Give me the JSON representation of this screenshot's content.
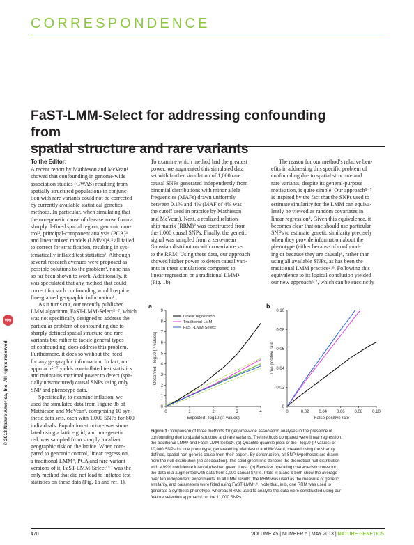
{
  "section_header": "CORRESPONDENCE",
  "title_lines": [
    "FaST-LMM-Select for addressing confounding from",
    "spatial structure and rare variants"
  ],
  "copyright": "© 2013 Nature America, Inc. All rights reserved.",
  "publisher_logo": "npg",
  "column1": {
    "heading": "To the Editor:",
    "lines": [
      "A recent report by Mathieson and McVean¹",
      "showed that confounding in genome-wide",
      "association studies (GWAS) resulting from",
      "spatially structured populations in conjunc-",
      "tion with rare variants could not be corrected",
      "by currently available statistical genetics",
      "methods. In particular, when simulating that",
      "the non-genetic cause of disease arose from a",
      "sharply defined spatial region, genomic con-",
      "trol², principal-component analysis (PCA)³",
      "and linear mixed models (LMMs)⁴˒⁵ all failed",
      "to correct for stratification, resulting in sys-",
      "tematically inflated test statistics¹. Although",
      "several research avenues were proposed as",
      "possible solutions to the problem¹, none has",
      "so far been shown to work. Additionally, it",
      "was speculated that any method that could",
      "correct for such confounding would require",
      "fine-grained geographic information¹."
    ],
    "lines_p2": [
      "As it turns out, our recently published",
      "LMM algorithm, FaST-LMM-Select⁵⁻⁷, which",
      "was not specifically designed to address the",
      "particular problem of confounding due to",
      "sharply defined spatial structure and rare",
      "variants but rather to tackle general types",
      "of confounding, does address this problem.",
      "Furthermore, it does so without the need",
      "for any geographic information. In fact, our",
      "approach⁵⁻⁷ yields non-inflated test statistics",
      "and maintains maximal power to detect (spa-",
      "tially unstructured) causal SNPs using only",
      "SNP and phenotype data."
    ],
    "lines_p3": [
      "Specifically, to examine inflation, we",
      "used the simulated data from Figure 3b of",
      "Mathieson and McVean¹, comprising 10 syn-",
      "thetic data sets, each with 1,000 SNPs for 800",
      "individuals. Population structure was simu-",
      "lated using a lattice grid, and non-genetic",
      "risk was sampled from sharply localized",
      "geographic risk on the lattice. When com-",
      "pared to genomic control, linear regression,",
      "a traditional LMM⁴, PCA and rare-variant",
      "versions of it, FaST-LMM-Select⁵⁻⁷ was the",
      "only method that did not lead to inflated test",
      "statistics on these data (Fig. 1a and ref. 1)."
    ]
  },
  "column2": {
    "lines_p1": [
      "To examine which method had the greatest",
      "power, we augmented this simulated data",
      "set with further simulation of 1,000 rare",
      "causal SNPs generated independently from",
      "binomial distributions with minor allele",
      "frequencies (MAFs) drawn uniformly",
      "between 0.1% and 4% (MAF of 4% was",
      "the cutoff used in practice by Mathieson",
      "and McVean). Next, a realized relation-",
      "ship matrix (RRM)⁸ was constructed from",
      "the 1,000 causal SNPs. Finally, the genetic",
      "signal was sampled from a zero-mean",
      "Gaussian distribution with covariance set",
      "to the RRM. Using these data, our approach",
      "showed higher power to detect causal vari-",
      "ants in these simulations compared to",
      "linear regression or a traditional LMM⁴",
      "(Fig. 1b)."
    ]
  },
  "column3": {
    "lines_p1": [
      "The reason for our method’s relative ben-",
      "efits in addressing this specific problem of",
      "confounding due to spatial structure and",
      "rare variants, despite its general-purpose",
      "motivation, is quite simple. Our approach⁵⁻⁷",
      "is inspired by the fact that the SNPs used to",
      "estimate similarity for the LMM can equiva-",
      "lently be viewed as random covariates in",
      "linear regression⁸. Given this equivalence, it",
      "becomes clear that one should use particular",
      "SNPs to estimate genetic similarity precisely",
      "when they provide information about the",
      "phenotype (either because of confound-",
      "ing or because they are causal)⁶, rather than",
      "using all available SNPs, as has been the",
      "traditional LMM practice⁴˒⁹. Following this",
      "equivalence to its logical conclusion yielded",
      "our new approach⁶˒⁷, which can be succinctly"
    ]
  },
  "figure": {
    "panel_a_label": "a",
    "panel_b_label": "b",
    "colors": {
      "linear": "#000000",
      "traditional": "#e040e0",
      "fast": "#2a63c8",
      "ci": "#a8d840",
      "diag": "#6fbf3a"
    },
    "legend": [
      "Linear regression",
      "Traditional LMM",
      "FaST-LMM-Select"
    ],
    "panel_a": {
      "xlabel": "Expected –log10 (P values)",
      "ylabel": "Observed –log10 (P values)",
      "xticks": [
        "0",
        "1",
        "2",
        "3",
        "4"
      ],
      "yticks": [
        "0",
        "1",
        "2",
        "3",
        "4",
        "5",
        "6",
        "7",
        "8",
        "9"
      ]
    },
    "panel_b": {
      "xlabel": "False positive rate",
      "ylabel": "True positive rate",
      "xticks": [
        "0",
        "0.02",
        "0.04",
        "0.06",
        "0.08",
        "0.10"
      ],
      "yticks": [
        "0",
        "0.02",
        "0.04",
        "0.06",
        "0.08",
        "0.10"
      ]
    }
  },
  "chart_data": [
    {
      "type": "line",
      "xlabel": "Expected –log10 (P values)",
      "ylabel": "Observed –log10 (P values)",
      "xlim": [
        0,
        4
      ],
      "ylim": [
        0,
        9
      ],
      "series": [
        {
          "name": "Linear regression",
          "x": [
            0,
            0.5,
            1,
            1.5,
            2,
            2.5,
            3,
            3.5,
            4
          ],
          "y": [
            0,
            0.6,
            1.3,
            2.0,
            2.9,
            3.8,
            4.9,
            6.3,
            7.8
          ]
        },
        {
          "name": "Traditional LMM",
          "x": [
            0,
            0.5,
            1,
            1.5,
            2,
            2.5,
            3,
            3.5,
            4
          ],
          "y": [
            0,
            0.5,
            1.05,
            1.55,
            2.05,
            2.6,
            3.2,
            3.8,
            4.4
          ]
        },
        {
          "name": "FaST-LMM-Select",
          "x": [
            0,
            0.5,
            1,
            1.5,
            2,
            2.5,
            3,
            3.5,
            4
          ],
          "y": [
            0,
            0.5,
            1.0,
            1.5,
            1.95,
            2.45,
            2.9,
            3.35,
            3.8
          ]
        }
      ]
    },
    {
      "type": "line",
      "xlabel": "False positive rate",
      "ylabel": "True positive rate",
      "xlim": [
        0,
        0.1
      ],
      "ylim": [
        0,
        0.1
      ],
      "series": [
        {
          "name": "Linear regression",
          "x": [
            0,
            0.01,
            0.02,
            0.03,
            0.04,
            0.05,
            0.06,
            0.07,
            0.08,
            0.09,
            0.1
          ],
          "y": [
            0,
            0.008,
            0.015,
            0.022,
            0.029,
            0.036,
            0.043,
            0.05,
            0.056,
            0.062,
            0.067
          ]
        },
        {
          "name": "Traditional LMM",
          "x": [
            0,
            0.01,
            0.02,
            0.03,
            0.04,
            0.05,
            0.06,
            0.07,
            0.08,
            0.082
          ],
          "y": [
            0,
            0.013,
            0.026,
            0.038,
            0.05,
            0.062,
            0.074,
            0.086,
            0.098,
            0.1
          ]
        },
        {
          "name": "FaST-LMM-Select",
          "x": [
            0,
            0.01,
            0.02,
            0.03,
            0.04,
            0.05,
            0.06,
            0.07,
            0.076
          ],
          "y": [
            0,
            0.014,
            0.028,
            0.041,
            0.054,
            0.067,
            0.08,
            0.092,
            0.1
          ]
        }
      ]
    }
  ],
  "caption": {
    "label": "Figure 1",
    "lines": [
      " Comparison of three methods for genome-wide association analyses in the presence of",
      "confounding due to spatial structure and rare variants. The methods compared were linear regression,",
      "the traditional LMM⁴ and FaST-LMM-Select⁶. (a) Quantile-quantile plots of the –log10 (P values) of",
      "10,000 SNPs for one phenotype, generated by Mathieson and McVean¹, created using the sharply",
      "defined, spatial non-genetic cause from their paper¹. By construction, all SNP hypotheses are drawn",
      "from the null distribution (no association). The solid green line denotes the theoretical null distribution",
      "with a 99% confidence interval (dashed green lines). (b) Receiver operating characteristic curve for",
      "the data in a augmented with data from 1,000 causal SNPs. Plots in a and b both show the average",
      "over ten independent experiments. In all LMM results, the RRM was used as the measure of genetic",
      "similarity, and parameters were fitted using FaST-LMM⁵˒⁶. Note that, in b, one RRM was used to",
      "generate a synthetic phenotype, whereas RRMs used to analyze the data were constructed using our",
      "feature selection approach⁶ on the 11,000 SNPs."
    ]
  },
  "footer": {
    "page": "470",
    "volume": "VOLUME 45",
    "number": "NUMBER 5",
    "date": "MAY 2013",
    "journal": "NATURE GENETICS"
  }
}
